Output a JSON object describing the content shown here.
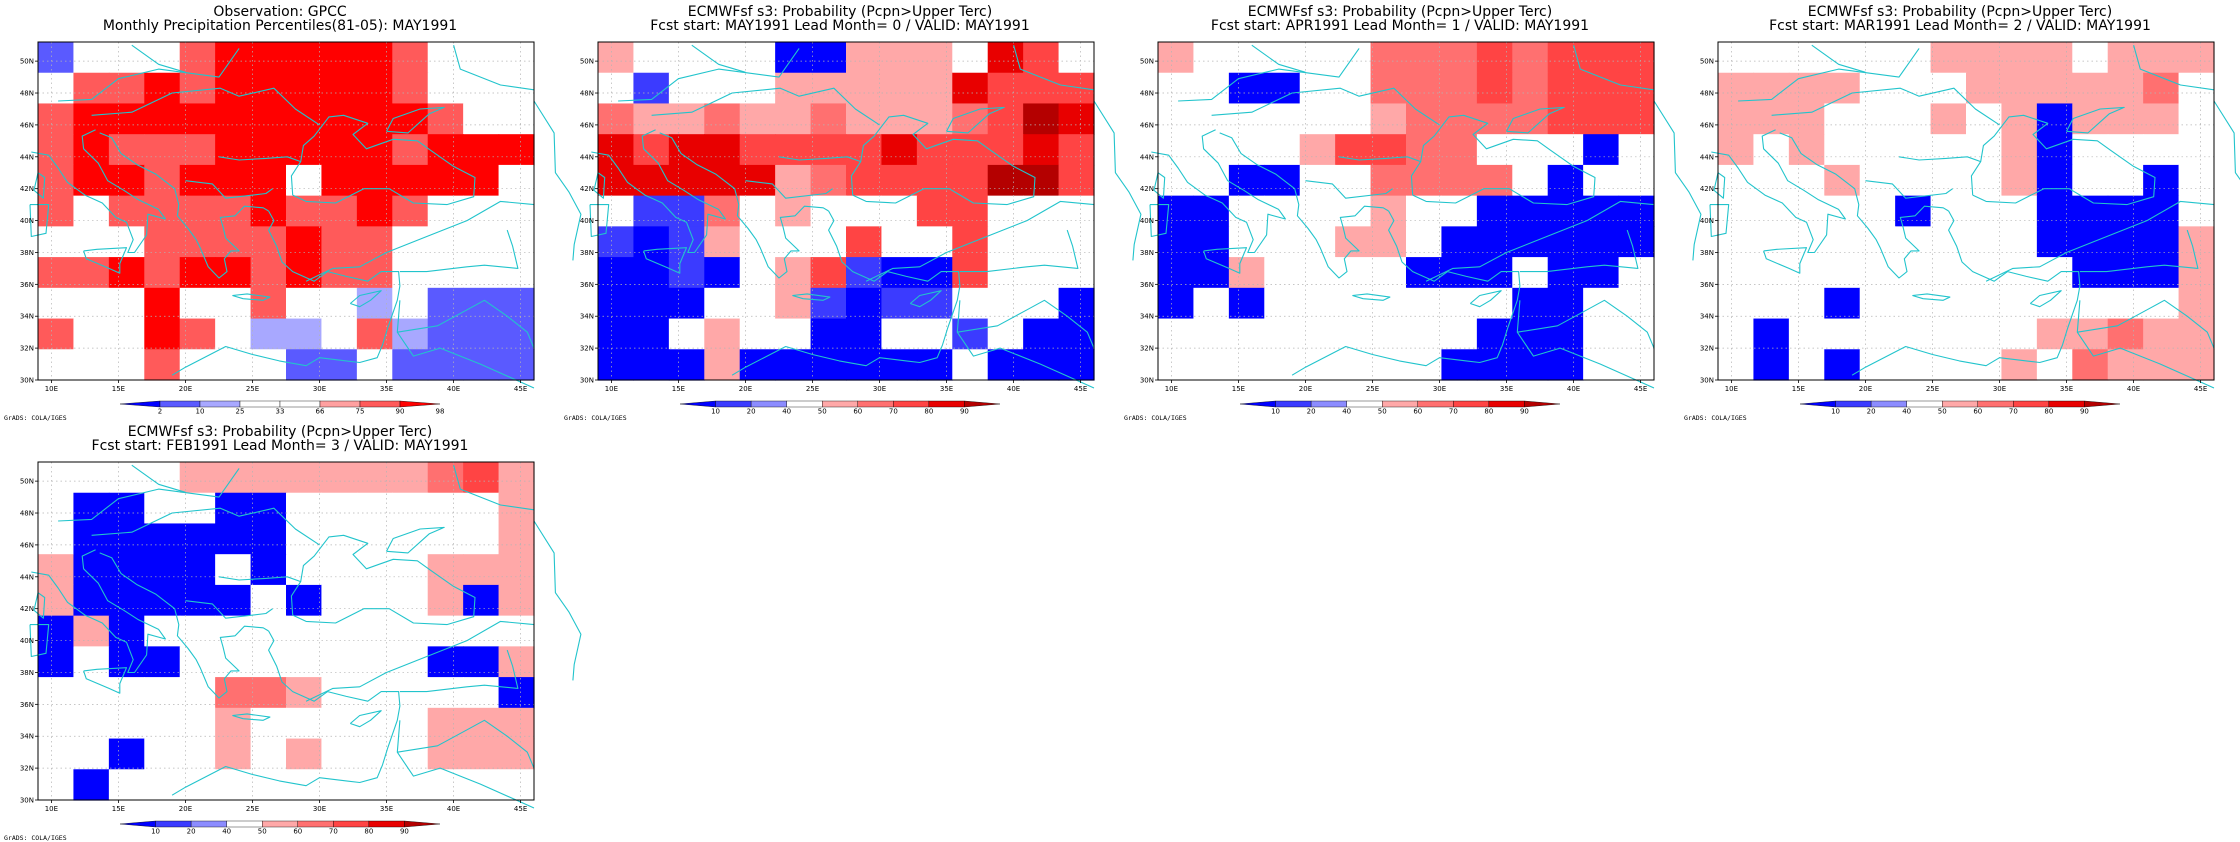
{
  "colors": {
    "coast": "#22c4cc",
    "grid": "#b4b4b4",
    "frame": "#000000",
    "obs_scale": [
      "#0000ff",
      "#5a5aff",
      "#a8a8ff",
      "#ffffff",
      "#ffffff",
      "#ffa0a0",
      "#ff5a5a",
      "#ff0000"
    ],
    "prob_scale": [
      "#0000ff",
      "#3b3bff",
      "#8c8cff",
      "#ffffff",
      "#ffa8a8",
      "#ff7070",
      "#ff4444",
      "#e80000",
      "#b40000"
    ]
  },
  "axes": {
    "lon_ticks": [
      "10E",
      "15E",
      "20E",
      "25E",
      "30E",
      "35E",
      "40E",
      "45E"
    ],
    "lat_ticks": [
      "30N",
      "32N",
      "34N",
      "36N",
      "38N",
      "40N",
      "42N",
      "44N",
      "46N",
      "48N",
      "50N"
    ]
  },
  "credit_text": "GrADS: COLA/IGES",
  "obs_colorbar": {
    "labels": [
      "2",
      "10",
      "25",
      "33",
      "66",
      "75",
      "90",
      "98"
    ]
  },
  "prob_colorbar": {
    "labels": [
      "10",
      "20",
      "40",
      "50",
      "60",
      "70",
      "80",
      "90"
    ]
  },
  "panels": [
    {
      "title1": "Observation: GPCC",
      "title2": "Monthly Precipitation Percentiles(81-05): MAY1991",
      "colorbar": "obs",
      "grid": [
        "13446777776333",
        "36676777776333",
        "67777777777633",
        "67666777776777",
        "67767774777773",
        "63666676676333",
        "33366667663333",
        "66767767663333",
        "33373363323111",
        "63376322362111",
        "33363331131111"
      ]
    },
    {
      "title1": "ECMWFsf s3: Probability (Pcpn>Upper Terc)",
      "title2": "Fcst start: MAY1991   Lead Month= 0 / VALID: MAY1991",
      "colorbar": "prob",
      "grid": [
        "43333004443763",
        "31333444447666",
        "54454454445687",
        "76776666766676",
        "77777456666886",
        "31153433366333",
        "10143336336333",
        "00103461006333",
        "00033410113330",
        "00343300331300",
        "00040000003000"
      ]
    },
    {
      "title1": "ECMWFsf s3: Probability (Pcpn>Upper Terc)",
      "title2": "Fcst start: APR1991   Lead Month= 1 / VALID: MAY1991",
      "colorbar": "prob",
      "grid": [
        "43333355565666",
        "33003355565666",
        "33333345555666",
        "33334665533303",
        "33003355553033",
        "00333343300000",
        "00333443000000",
        "00433330003003",
        "03033333330033",
        "33333333300033",
        "33333333000033"
      ]
    },
    {
      "title1": "ECMWFsf s3: Probability (Pcpn>Upper Terc)",
      "title2": "Fcst start: MAR1991   Lead Month= 2 / VALID: MAY1991",
      "colorbar": "prob",
      "grid": [
        "33333344443444",
        "44443334444453",
        "44433343404443",
        "43433333403333",
        "33343333403303",
        "33333033300003",
        "33333333300004",
        "33333333330004",
        "33303333333334",
        "30333333344544",
        "30303333435444"
      ]
    },
    {
      "title1": "ECMWFsf s3: Probability (Pcpn>Upper Terc)",
      "title2": "Fcst start: FEB1991   Lead Month= 3 / VALID: MAY1991",
      "colorbar": "prob",
      "grid": [
        "33334444444564",
        "30033003333334",
        "30000003333334",
        "40000303333444",
        "40000030333404",
        "04033333333333",
        "03003333333004",
        "33333554333330",
        "33333433333444",
        "33033434333444",
        "30333333333333"
      ]
    }
  ]
}
